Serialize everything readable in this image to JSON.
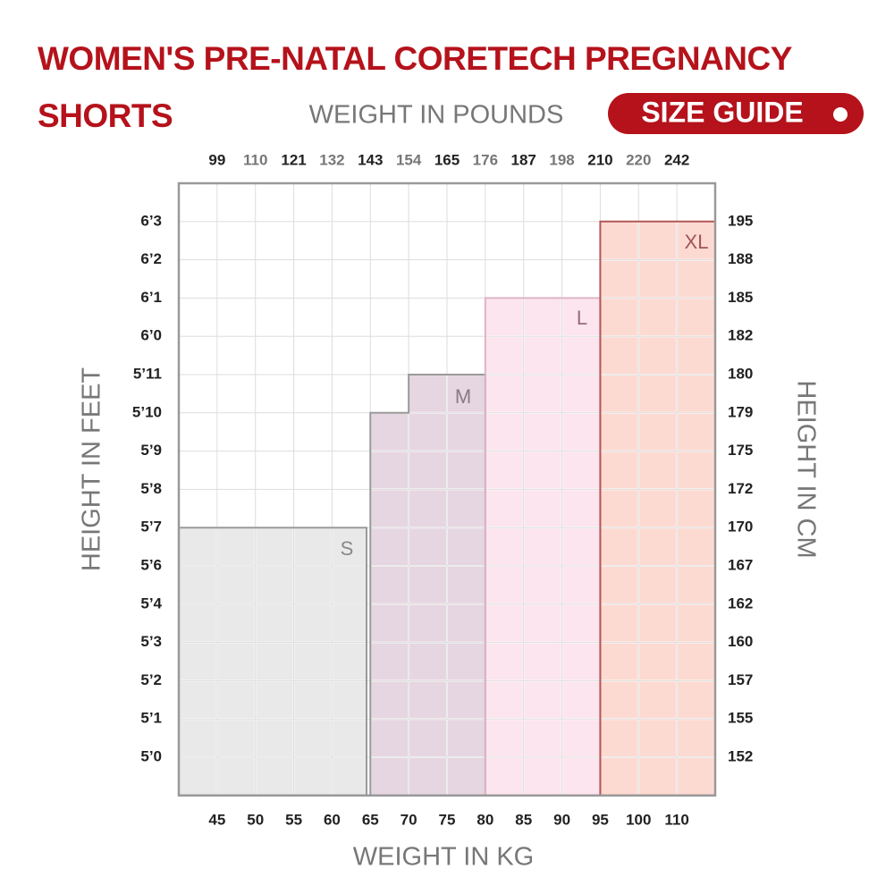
{
  "chart_data": {
    "type": "size-chart",
    "title": "WOMEN'S PRE-NATAL CORETECH PREGNANCY SHORTS",
    "badge": "SIZE GUIDE",
    "x_top_label": "WEIGHT IN POUNDS",
    "x_bottom_label": "WEIGHT IN KG",
    "y_left_label": "HEIGHT IN FEET",
    "y_right_label": "HEIGHT IN CM",
    "lbs_ticks": [
      "99",
      "110",
      "121",
      "132",
      "143",
      "154",
      "165",
      "176",
      "187",
      "198",
      "210",
      "220",
      "242"
    ],
    "kg_ticks": [
      "45",
      "50",
      "55",
      "60",
      "65",
      "70",
      "75",
      "80",
      "85",
      "90",
      "95",
      "100",
      "110"
    ],
    "feet_ticks": [
      "6’3",
      "6’2",
      "6’1",
      "6’0",
      "5’11",
      "5’10",
      "5’9",
      "5’8",
      "5’7",
      "5’6",
      "5’4",
      "5’3",
      "5’2",
      "5’1",
      "5’0"
    ],
    "cm_ticks": [
      "195",
      "188",
      "185",
      "182",
      "180",
      "179",
      "175",
      "172",
      "170",
      "167",
      "162",
      "160",
      "157",
      "155",
      "152"
    ],
    "sizes": [
      {
        "name": "S",
        "color": "#e9e9e9"
      },
      {
        "name": "M",
        "color": "#e6d6e1"
      },
      {
        "name": "L",
        "color": "#fce5ee"
      },
      {
        "name": "XL",
        "color": "#fddad1"
      }
    ]
  }
}
